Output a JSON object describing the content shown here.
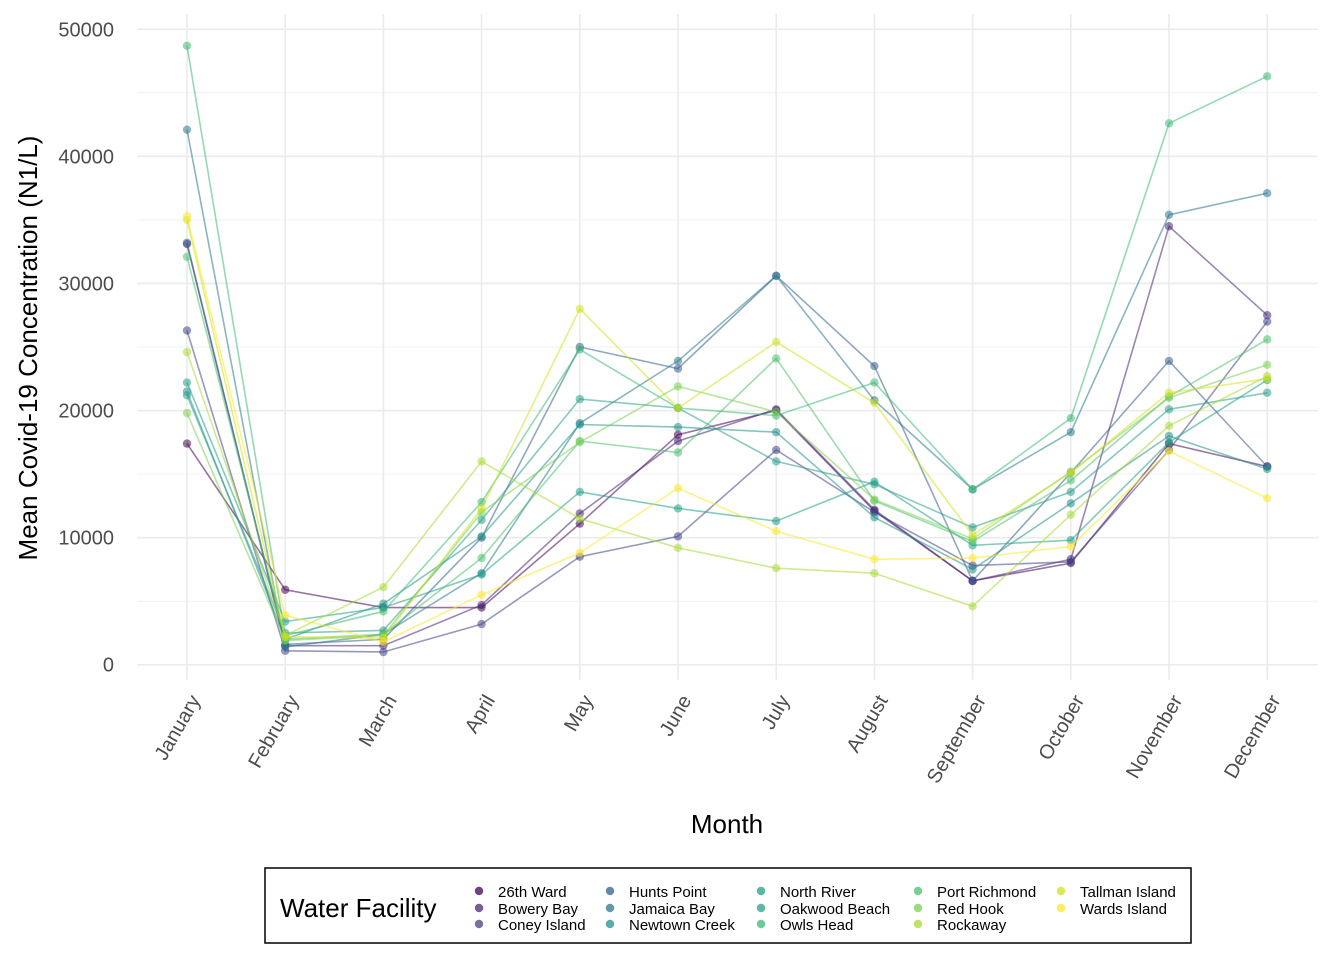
{
  "chart_data": {
    "type": "line",
    "xlabel": "Month",
    "ylabel": "Mean Covid-19 Concentration (N1/L)",
    "ylim": [
      -1200,
      51200
    ],
    "yticks": [
      0,
      10000,
      20000,
      30000,
      40000,
      50000
    ],
    "grid": true,
    "categories": [
      "January",
      "February",
      "March",
      "April",
      "May",
      "June",
      "July",
      "August",
      "September",
      "October",
      "November",
      "December"
    ],
    "legend": {
      "title": "Water Facility",
      "placement": "bottom"
    },
    "series": [
      {
        "name": "26th Ward",
        "color": "#440154",
        "values": [
          17400,
          5900,
          4500,
          4500,
          11100,
          18100,
          20000,
          12100,
          6600,
          8000,
          17400,
          15600
        ]
      },
      {
        "name": "Bowery Bay",
        "color": "#482576",
        "values": [
          33100,
          1500,
          1500,
          4700,
          11900,
          17600,
          20100,
          12200,
          6600,
          8300,
          34500,
          27500
        ]
      },
      {
        "name": "Coney Island",
        "color": "#414487",
        "values": [
          26300,
          1100,
          1000,
          3200,
          8500,
          10100,
          16900,
          12000,
          7800,
          8100,
          16900,
          27000
        ]
      },
      {
        "name": "Hunts Point",
        "color": "#35608d",
        "values": [
          33200,
          1600,
          2000,
          10000,
          25000,
          23300,
          30600,
          23500,
          6600,
          15100,
          23900,
          15600
        ]
      },
      {
        "name": "Jamaica Bay",
        "color": "#2a788e",
        "values": [
          42100,
          1400,
          2400,
          7200,
          19000,
          23900,
          30600,
          20800,
          13800,
          18300,
          35400,
          37100
        ]
      },
      {
        "name": "Newtown Creek",
        "color": "#21918c",
        "values": [
          21500,
          2000,
          4800,
          10100,
          18900,
          18700,
          18300,
          11600,
          7500,
          12700,
          18000,
          15400
        ]
      },
      {
        "name": "North River",
        "color": "#1fa187",
        "values": [
          22200,
          3400,
          4500,
          7100,
          13600,
          12300,
          11300,
          14400,
          9400,
          9800,
          17500,
          22400
        ]
      },
      {
        "name": "Oakwood Beach",
        "color": "#2a9f8a",
        "values": [
          21200,
          2500,
          2700,
          11400,
          20900,
          20200,
          16000,
          14200,
          10800,
          13600,
          20100,
          21400
        ]
      },
      {
        "name": "Owls Head",
        "color": "#3bbb75",
        "values": [
          48700,
          2300,
          4200,
          12800,
          24800,
          20200,
          19600,
          22200,
          13800,
          19400,
          42600,
          46300
        ]
      },
      {
        "name": "Port Richmond",
        "color": "#4ac16d",
        "values": [
          32100,
          2000,
          2400,
          8400,
          17600,
          16700,
          24100,
          12900,
          9700,
          14500,
          21100,
          25600
        ]
      },
      {
        "name": "Red Hook",
        "color": "#7ad151",
        "values": [
          19800,
          1900,
          2300,
          12000,
          17500,
          21900,
          19900,
          13000,
          9900,
          15200,
          21000,
          23600
        ]
      },
      {
        "name": "Rockaway",
        "color": "#a8db34",
        "values": [
          24600,
          2300,
          6100,
          16000,
          11500,
          9200,
          7600,
          7200,
          4600,
          11800,
          18800,
          22700
        ]
      },
      {
        "name": "Tallman Island",
        "color": "#d0e11c",
        "values": [
          35000,
          2200,
          2100,
          12300,
          28000,
          20200,
          25400,
          20600,
          10200,
          15100,
          21400,
          22500
        ]
      },
      {
        "name": "Wards Island",
        "color": "#fde725",
        "values": [
          35300,
          3900,
          1800,
          5500,
          8800,
          13900,
          10500,
          8300,
          8400,
          9300,
          16800,
          13100
        ]
      }
    ]
  }
}
